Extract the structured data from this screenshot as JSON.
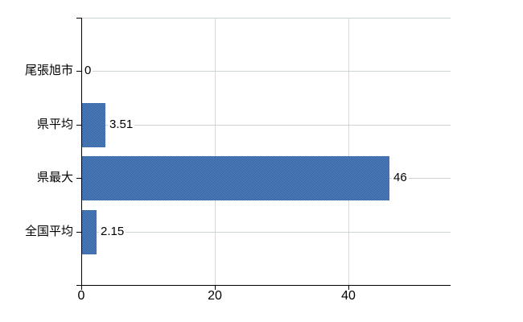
{
  "chart_data": {
    "type": "bar",
    "orientation": "horizontal",
    "categories": [
      "尾張旭市",
      "県平均",
      "県最大",
      "全国平均"
    ],
    "values": [
      0,
      3.51,
      46,
      2.15
    ],
    "value_labels": [
      "0",
      "3.51",
      "46",
      "2.15"
    ],
    "xticks": [
      0,
      20,
      40
    ],
    "xtick_labels": [
      "0",
      "20",
      "40"
    ],
    "xlim": [
      0,
      55.3
    ],
    "grid": true,
    "legend": false,
    "colors": {
      "bar": "#4471b1",
      "bar_dither_dark": "#33609f",
      "bar_dither_light": "#5483c2",
      "axis": "#000000",
      "hgrid": "#ccd6cc",
      "vgrid": "#d9d9d9",
      "top_border": "#c9d4c9",
      "text": "#000000",
      "background": "#ffffff"
    }
  }
}
